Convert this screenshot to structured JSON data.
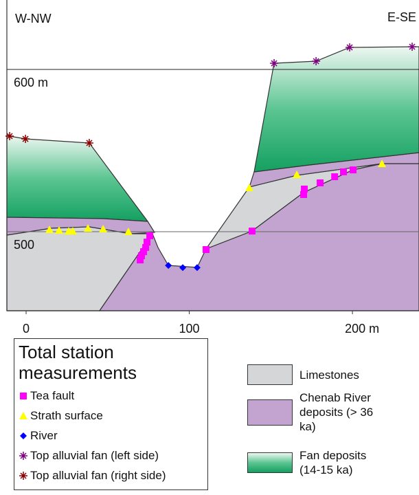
{
  "chart_data": {
    "type": "scatter",
    "left_label": "W-NW",
    "right_label": "E-SE",
    "xlim": [
      -11.8,
      240.8
    ],
    "ylim": [
      451.3,
      642.8
    ],
    "xticks": [
      0,
      100,
      {
        "value": 200,
        "label": "200 m"
      }
    ],
    "yticks": [
      {
        "value": 500,
        "label": "500"
      },
      {
        "value": 600,
        "label": "600 m"
      }
    ],
    "legend_title": "Total station measurements",
    "series": [
      {
        "name": "Tea fault",
        "color": "#ff00ff",
        "marker": "square",
        "x": [
          75.8,
          74.1,
          73.3,
          72.0,
          70.7,
          69.9,
          110.3,
          138.5,
          170.1,
          170.5,
          180.2,
          189.1,
          194.5,
          200.4
        ],
        "values": [
          497.5,
          493.6,
          490.3,
          487.7,
          485.2,
          482.6,
          489.0,
          500.4,
          522.9,
          526.3,
          530.1,
          533.9,
          536.9,
          538.1
        ]
      },
      {
        "name": "Strath surface",
        "color": "#ffff00",
        "marker": "triangle",
        "x": [
          14.3,
          20.2,
          26.1,
          28.6,
          37.9,
          47.2,
          62.7,
          136.8,
          165.9,
          218.1
        ],
        "values": [
          501.3,
          500.8,
          500.4,
          500.4,
          502.1,
          501.7,
          500.0,
          527.1,
          535.2,
          541.9
        ]
      },
      {
        "name": "River",
        "color": "#0000ff",
        "marker": "diamond",
        "x": [
          87.2,
          96.0,
          104.8
        ],
        "values": [
          479.2,
          477.9,
          477.9
        ]
      },
      {
        "name": "Top alluvial fan (left side)",
        "color": "#800080",
        "marker": "asterisk",
        "x": [
          152.0,
          177.7,
          198.3,
          236.6
        ],
        "values": [
          603.8,
          605.1,
          613.6,
          614.0
        ]
      },
      {
        "name": "Top alluvial fan (right side)",
        "color": "#8b0000",
        "marker": "asterisk",
        "x": [
          -10.1,
          -0.4,
          38.7
        ],
        "values": [
          558.9,
          557.2,
          554.7
        ]
      }
    ],
    "unit_legend": [
      {
        "label": "Limestones",
        "color": "#d4d6d8"
      },
      {
        "label": "Chenab River deposits (> 36 ka)",
        "color": "#c3a3cf"
      },
      {
        "label": "Fan deposits (14-15 ka)",
        "color": "gradient"
      }
    ]
  }
}
